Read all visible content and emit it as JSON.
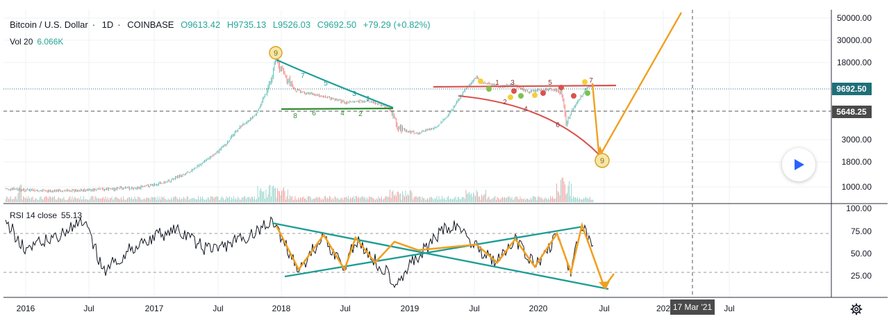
{
  "header": {
    "symbol": "Bitcoin / U.S. Dollar",
    "interval": "1D",
    "exchange": "COINBASE",
    "open": "O9613.42",
    "high": "H9735.13",
    "low": "L9526.03",
    "close": "C9692.50",
    "change": "+79.29 (+0.82%)"
  },
  "volume": {
    "label": "Vol 20",
    "value": "6.066K"
  },
  "rsi": {
    "label": "RSI 14 close",
    "value": "55.13"
  },
  "price_axis": {
    "ticks": [
      "50000.00",
      "30000.00",
      "18000.00",
      "6000.00",
      "3000.00",
      "1800.00",
      "1000.00"
    ],
    "current_price": "9692.50",
    "crosshair_price": "5648.25"
  },
  "rsi_axis": {
    "ticks": [
      "100.00",
      "75.00",
      "50.00",
      "25.00"
    ]
  },
  "time_axis": {
    "ticks": [
      "2016",
      "Jul",
      "2017",
      "Jul",
      "2018",
      "Jul",
      "2019",
      "Jul",
      "2020",
      "Jul",
      "202",
      "Jul"
    ],
    "crosshair_date": "17 Mar '21"
  },
  "annotations": {
    "top_marker": "9",
    "target_marker": "9",
    "triangle_upper_counts": [
      "7",
      "5",
      "3",
      "1"
    ],
    "triangle_lower_counts": [
      "8",
      "6",
      "4",
      "2"
    ],
    "range_upper_counts": [
      "1",
      "3",
      "5",
      "7"
    ],
    "range_lower_counts": [
      "2",
      "4",
      "6"
    ]
  },
  "colors": {
    "up": "#26a69a",
    "down": "#ef5350",
    "teal_line": "#1e9d96",
    "orange_line": "#f0a020",
    "red_line": "#d9534f",
    "green_line": "#2e8b2e",
    "price_line": "#2a6b7c"
  },
  "controls": {
    "play_icon": "play-icon",
    "settings_icon": "gear-icon"
  }
}
